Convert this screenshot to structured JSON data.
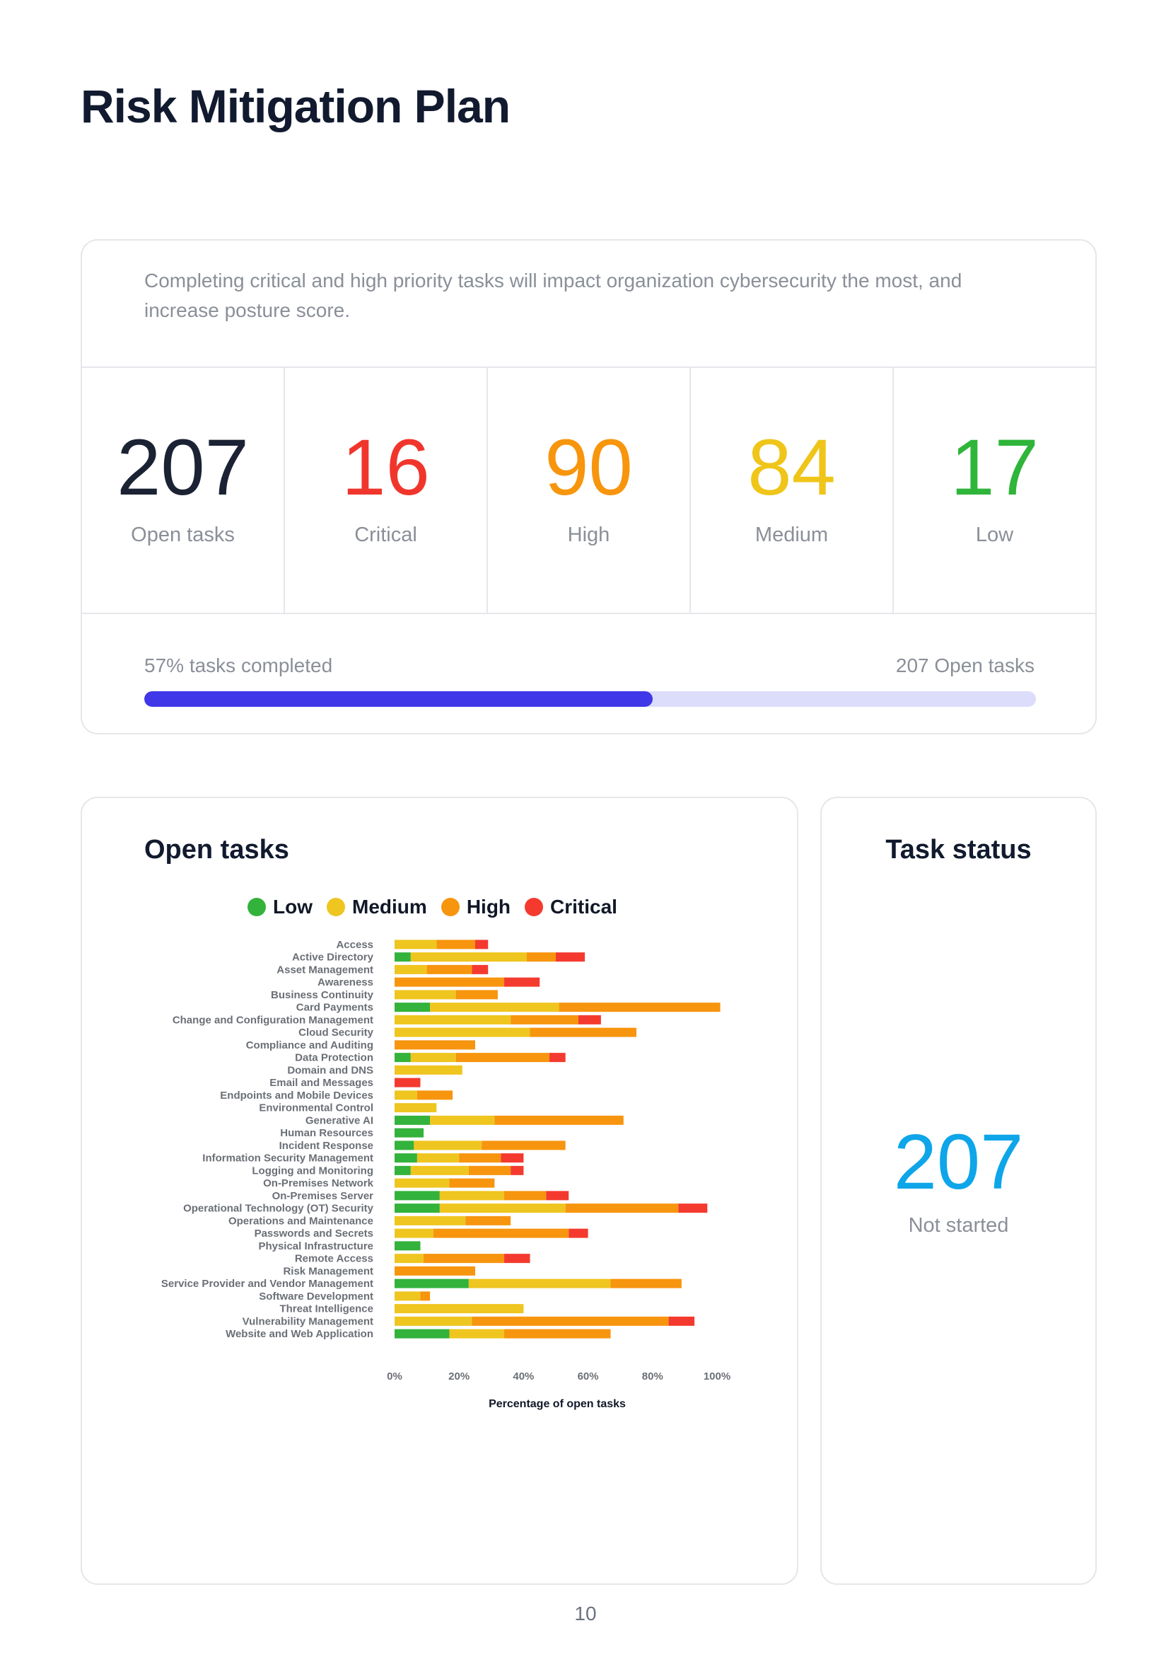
{
  "title": "Risk Mitigation Plan",
  "summary": {
    "description": "Completing critical and high priority tasks will impact organization cybersecurity the most, and increase posture score.",
    "stats": [
      {
        "value": "207",
        "label": "Open tasks",
        "color": "#1a2233"
      },
      {
        "value": "16",
        "label": "Critical",
        "color": "#f0362c"
      },
      {
        "value": "90",
        "label": "High",
        "color": "#f7950d"
      },
      {
        "value": "84",
        "label": "Medium",
        "color": "#efc51a"
      },
      {
        "value": "17",
        "label": "Low",
        "color": "#2fb53a"
      }
    ],
    "progress_label": "57% tasks completed",
    "progress_right": "207 Open tasks",
    "progress_percent": 57
  },
  "open_tasks": {
    "title": "Open tasks",
    "legend": [
      {
        "label": "Low",
        "color": "#33b23c"
      },
      {
        "label": "Medium",
        "color": "#efc51f"
      },
      {
        "label": "High",
        "color": "#f7950f"
      },
      {
        "label": "Critical",
        "color": "#f43a2f"
      }
    ]
  },
  "chart_data": {
    "type": "bar",
    "orientation": "horizontal",
    "stacked": true,
    "xlabel": "Percentage of open tasks",
    "xlim": [
      0,
      100
    ],
    "xticks": [
      "0%",
      "20%",
      "40%",
      "60%",
      "80%",
      "100%"
    ],
    "legend_position": "top",
    "categories": [
      "Access",
      "Active Directory",
      "Asset Management",
      "Awareness",
      "Business Continuity",
      "Card Payments",
      "Change and Configuration Management",
      "Cloud Security",
      "Compliance and Auditing",
      "Data Protection",
      "Domain and DNS",
      "Email and Messages",
      "Endpoints and Mobile Devices",
      "Environmental Control",
      "Generative AI",
      "Human Resources",
      "Incident Response",
      "Information Security Management",
      "Logging and Monitoring",
      "On-Premises Network",
      "On-Premises Server",
      "Operational Technology (OT) Security",
      "Operations and Maintenance",
      "Passwords and Secrets",
      "Physical Infrastructure",
      "Remote Access",
      "Risk Management",
      "Service Provider and Vendor Management",
      "Software Development",
      "Threat Intelligence",
      "Vulnerability Management",
      "Website and Web Application"
    ],
    "series": [
      {
        "name": "Low",
        "color": "#33b23c",
        "values": [
          0,
          5,
          0,
          0,
          0,
          11,
          0,
          0,
          0,
          5,
          0,
          0,
          0,
          0,
          11,
          9,
          6,
          7,
          5,
          0,
          14,
          14,
          0,
          0,
          8,
          0,
          0,
          23,
          0,
          0,
          0,
          17
        ]
      },
      {
        "name": "Medium",
        "color": "#efc51f",
        "values": [
          13,
          36,
          10,
          0,
          19,
          40,
          36,
          42,
          0,
          14,
          21,
          0,
          7,
          13,
          20,
          0,
          21,
          13,
          18,
          17,
          20,
          39,
          22,
          12,
          0,
          9,
          0,
          44,
          8,
          40,
          24,
          17
        ]
      },
      {
        "name": "High",
        "color": "#f7950f",
        "values": [
          12,
          9,
          14,
          34,
          13,
          50,
          21,
          33,
          25,
          29,
          0,
          0,
          11,
          0,
          40,
          0,
          26,
          13,
          13,
          14,
          13,
          35,
          14,
          42,
          0,
          25,
          25,
          22,
          3,
          0,
          61,
          33
        ]
      },
      {
        "name": "Critical",
        "color": "#f43a2f",
        "values": [
          4,
          9,
          5,
          11,
          0,
          0,
          7,
          0,
          0,
          5,
          0,
          8,
          0,
          0,
          0,
          0,
          0,
          7,
          4,
          0,
          7,
          9,
          0,
          6,
          0,
          8,
          0,
          0,
          0,
          0,
          8,
          0
        ]
      }
    ]
  },
  "task_status": {
    "title": "Task status",
    "value": "207",
    "label": "Not started"
  },
  "page_number": "10"
}
